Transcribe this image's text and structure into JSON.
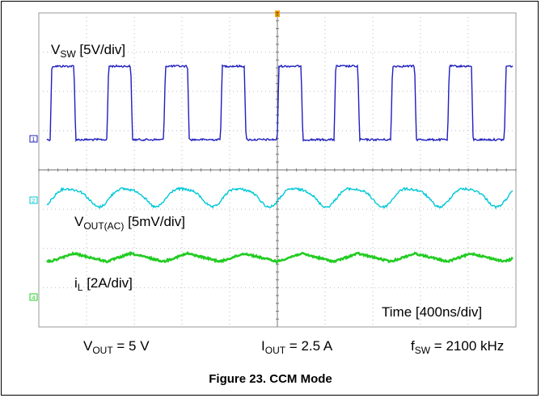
{
  "chart_data": {
    "type": "line",
    "time_scale": "Time [400ns/div]",
    "series": [
      {
        "name_main": "V",
        "name_sub": "SW",
        "scale": "[5V/div]",
        "color": "#1f1fbf",
        "waveform": "square",
        "period_ns": 476,
        "duty": 0.42,
        "low_div": 0.15,
        "high_div": 3.3
      },
      {
        "name_main": "V",
        "name_sub": "OUT(AC)",
        "scale": "[5mV/div]",
        "color": "#00c8d8",
        "waveform": "ripple",
        "period_ns": 476,
        "center_div": 5.75,
        "amplitude_div": 0.25
      },
      {
        "name_main": "i",
        "name_sub": "L",
        "scale": "[2A/div]",
        "color": "#22cc22",
        "waveform": "triangle",
        "period_ns": 476,
        "center_div": 7.35,
        "amplitude_div": 0.12
      }
    ],
    "channel_markers": [
      "1",
      "2",
      "4"
    ],
    "trigger_marker": "T",
    "grid": true,
    "divisions": {
      "x": 10,
      "y": 8
    }
  },
  "params": {
    "vout": {
      "main": "V",
      "sub": "OUT",
      "value": " = 5 V"
    },
    "iout": {
      "main": "I",
      "sub": "OUT",
      "value": " = 2.5 A"
    },
    "fsw": {
      "main": "f",
      "sub": "SW",
      "value": " = 2100 kHz"
    }
  },
  "caption": "Figure 23. CCM Mode"
}
